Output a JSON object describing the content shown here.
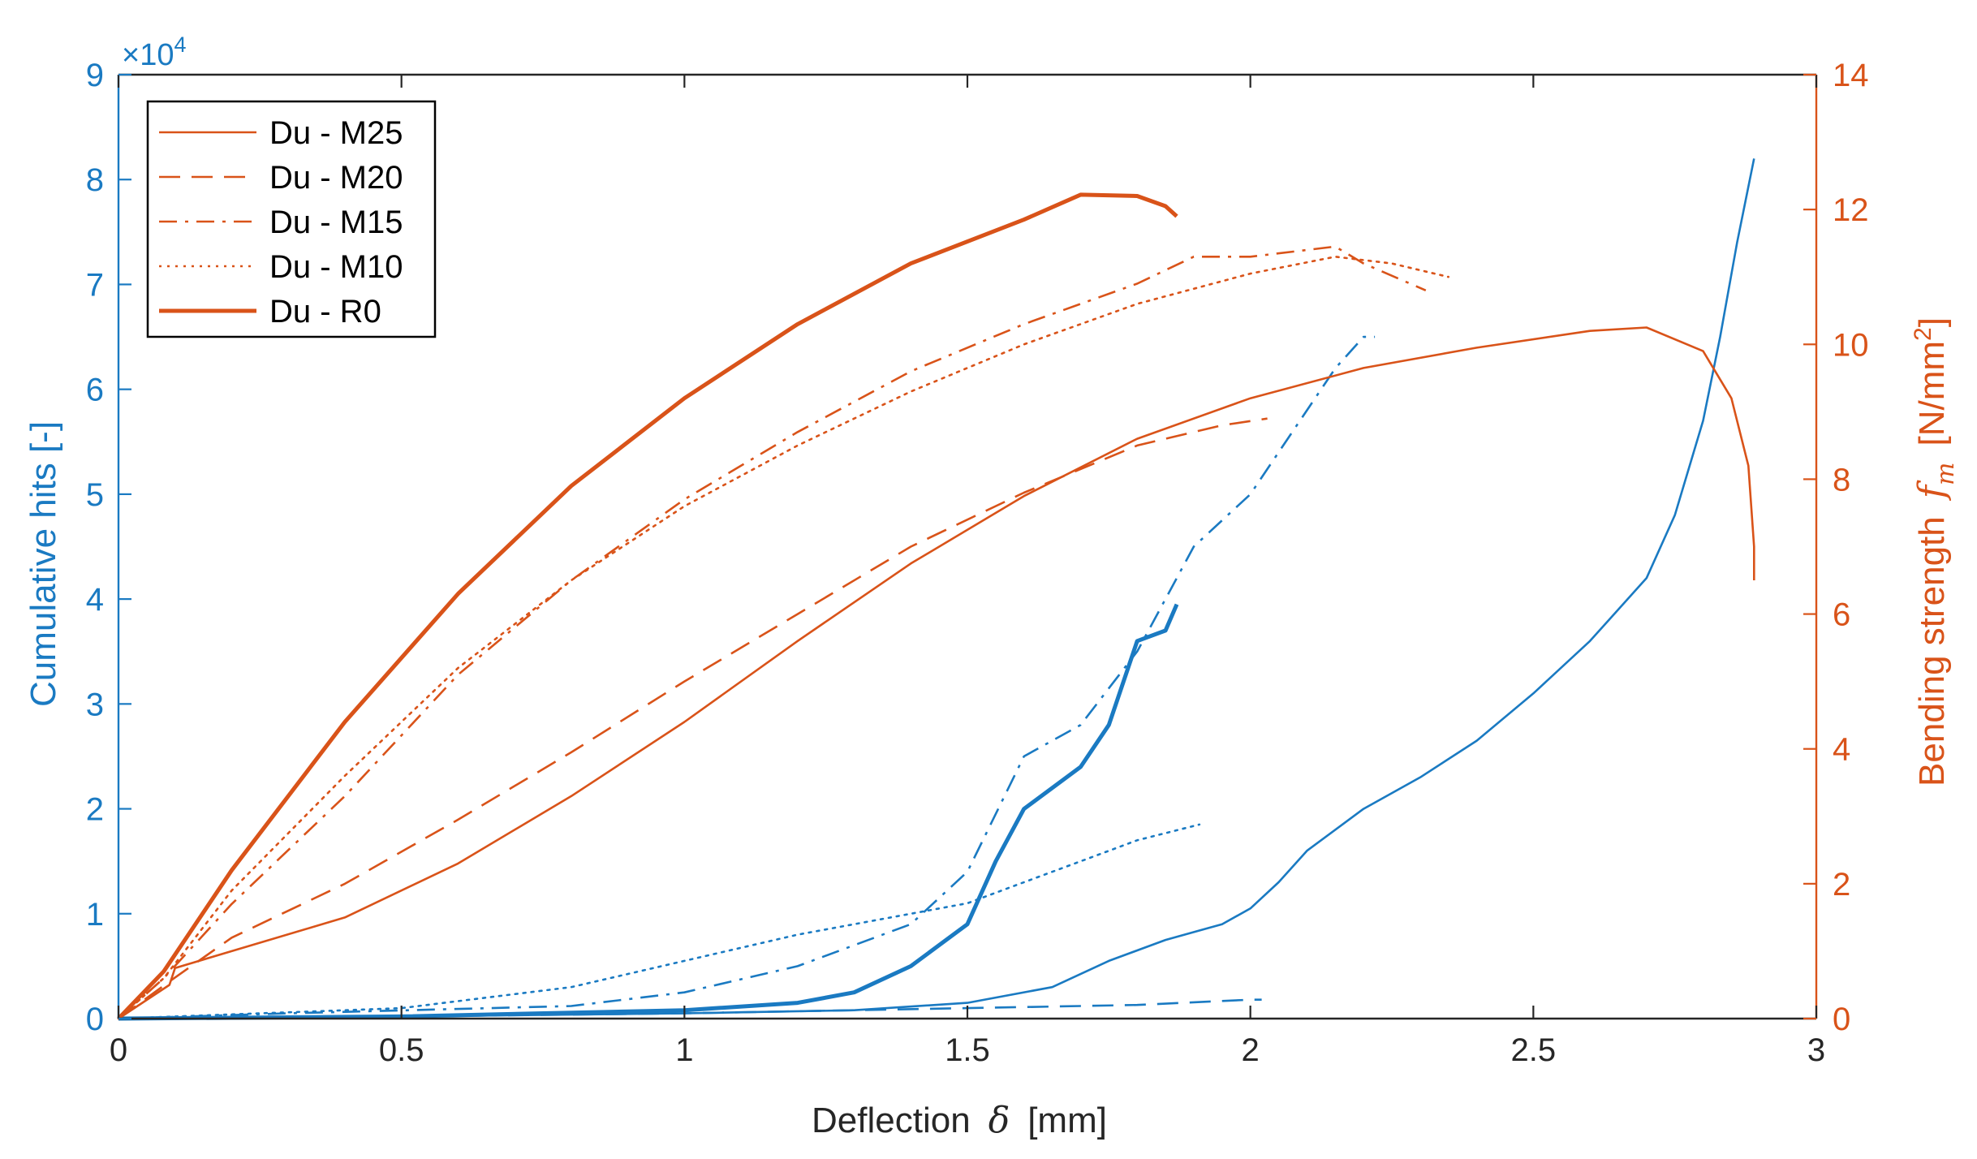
{
  "colors": {
    "left_axis": "#1a7ac2",
    "right_axis": "#d95319",
    "frame": "#262626",
    "legend_border": "#000000"
  },
  "chart_data": {
    "type": "line",
    "title": "",
    "xlabel": "Deflection",
    "xlabel_symbol": "δ",
    "xlabel_unit": "[mm]",
    "xlim": [
      0,
      3
    ],
    "x_ticks": [
      "0",
      "0.5",
      "1",
      "1.5",
      "2",
      "2.5",
      "3"
    ],
    "ylabel_left": "Cumulative hits [-]",
    "ylim_left": [
      0,
      9
    ],
    "y_ticks_left": [
      "0",
      "1",
      "2",
      "3",
      "4",
      "5",
      "6",
      "7",
      "8",
      "9"
    ],
    "y_left_multiplier": "×10",
    "y_left_multiplier_exponent": "4",
    "ylabel_right": "Bending strength",
    "ylabel_right_symbol": "f",
    "ylabel_right_subscript": "m",
    "ylabel_right_unit": "[N/mm",
    "ylabel_right_unit_exponent": "2",
    "ylabel_right_unit_close": "]",
    "ylim_right": [
      0,
      14
    ],
    "y_ticks_right": [
      "0",
      "2",
      "4",
      "6",
      "8",
      "10",
      "12",
      "14"
    ],
    "legend_position": "top-left",
    "legend": [
      {
        "label": "Du - M25",
        "dash": "solid",
        "width": "thin"
      },
      {
        "label": "Du - M20",
        "dash": "dashed",
        "width": "thin"
      },
      {
        "label": "Du - M15",
        "dash": "dashdot",
        "width": "thin"
      },
      {
        "label": "Du - M10",
        "dash": "dotted",
        "width": "thin"
      },
      {
        "label": "Du - R0",
        "dash": "solid",
        "width": "thick"
      }
    ],
    "series_strength": [
      {
        "name": "Du - M25",
        "axis": "right",
        "dash": "solid",
        "width": "thin",
        "points": [
          [
            0,
            0
          ],
          [
            0.09,
            0.5
          ],
          [
            0.1,
            0.75
          ],
          [
            0.2,
            1.0
          ],
          [
            0.4,
            1.5
          ],
          [
            0.6,
            2.3
          ],
          [
            0.8,
            3.3
          ],
          [
            1.0,
            4.4
          ],
          [
            1.2,
            5.6
          ],
          [
            1.4,
            6.75
          ],
          [
            1.6,
            7.75
          ],
          [
            1.8,
            8.6
          ],
          [
            2.0,
            9.2
          ],
          [
            2.2,
            9.65
          ],
          [
            2.4,
            9.95
          ],
          [
            2.6,
            10.2
          ],
          [
            2.7,
            10.25
          ],
          [
            2.8,
            9.9
          ],
          [
            2.85,
            9.2
          ],
          [
            2.88,
            8.2
          ],
          [
            2.89,
            7.0
          ],
          [
            2.89,
            6.5
          ]
        ]
      },
      {
        "name": "Du - M20",
        "axis": "right",
        "dash": "dashed",
        "width": "thin",
        "points": [
          [
            0,
            0
          ],
          [
            0.09,
            0.55
          ],
          [
            0.2,
            1.2
          ],
          [
            0.4,
            2.0
          ],
          [
            0.6,
            2.95
          ],
          [
            0.8,
            3.95
          ],
          [
            1.0,
            5.0
          ],
          [
            1.2,
            6.0
          ],
          [
            1.4,
            7.0
          ],
          [
            1.6,
            7.8
          ],
          [
            1.8,
            8.5
          ],
          [
            1.95,
            8.8
          ],
          [
            2.03,
            8.9
          ]
        ]
      },
      {
        "name": "Du - M15",
        "axis": "right",
        "dash": "dashdot",
        "width": "thin",
        "points": [
          [
            0,
            0
          ],
          [
            0.08,
            0.6
          ],
          [
            0.2,
            1.7
          ],
          [
            0.4,
            3.3
          ],
          [
            0.6,
            5.1
          ],
          [
            0.8,
            6.5
          ],
          [
            1.0,
            7.7
          ],
          [
            1.2,
            8.7
          ],
          [
            1.4,
            9.6
          ],
          [
            1.6,
            10.3
          ],
          [
            1.8,
            10.9
          ],
          [
            1.9,
            11.3
          ],
          [
            2.0,
            11.3
          ],
          [
            2.15,
            11.45
          ],
          [
            2.2,
            11.2
          ],
          [
            2.31,
            10.8
          ]
        ]
      },
      {
        "name": "Du - M10",
        "axis": "right",
        "dash": "dotted",
        "width": "thin",
        "points": [
          [
            0,
            0
          ],
          [
            0.08,
            0.6
          ],
          [
            0.2,
            1.9
          ],
          [
            0.4,
            3.6
          ],
          [
            0.6,
            5.2
          ],
          [
            0.8,
            6.5
          ],
          [
            1.0,
            7.6
          ],
          [
            1.2,
            8.5
          ],
          [
            1.4,
            9.3
          ],
          [
            1.6,
            10.0
          ],
          [
            1.8,
            10.6
          ],
          [
            2.0,
            11.05
          ],
          [
            2.15,
            11.3
          ],
          [
            2.25,
            11.2
          ],
          [
            2.35,
            11.0
          ]
        ]
      },
      {
        "name": "Du - R0",
        "axis": "right",
        "dash": "solid",
        "width": "thick",
        "points": [
          [
            0,
            0
          ],
          [
            0.08,
            0.7
          ],
          [
            0.2,
            2.2
          ],
          [
            0.4,
            4.4
          ],
          [
            0.6,
            6.3
          ],
          [
            0.8,
            7.9
          ],
          [
            1.0,
            9.2
          ],
          [
            1.2,
            10.3
          ],
          [
            1.4,
            11.2
          ],
          [
            1.6,
            11.85
          ],
          [
            1.7,
            12.22
          ],
          [
            1.8,
            12.2
          ],
          [
            1.85,
            12.05
          ],
          [
            1.87,
            11.9
          ]
        ]
      }
    ],
    "series_hits": [
      {
        "name": "Du - M25",
        "axis": "left",
        "dash": "solid",
        "width": "thin",
        "points": [
          [
            0,
            0
          ],
          [
            0.5,
            0.02
          ],
          [
            1.0,
            0.05
          ],
          [
            1.3,
            0.08
          ],
          [
            1.5,
            0.15
          ],
          [
            1.65,
            0.3
          ],
          [
            1.75,
            0.55
          ],
          [
            1.85,
            0.75
          ],
          [
            1.95,
            0.9
          ],
          [
            2.0,
            1.05
          ],
          [
            2.05,
            1.3
          ],
          [
            2.1,
            1.6
          ],
          [
            2.2,
            2.0
          ],
          [
            2.3,
            2.3
          ],
          [
            2.4,
            2.65
          ],
          [
            2.5,
            3.1
          ],
          [
            2.6,
            3.6
          ],
          [
            2.7,
            4.2
          ],
          [
            2.75,
            4.8
          ],
          [
            2.8,
            5.7
          ],
          [
            2.83,
            6.5
          ],
          [
            2.86,
            7.4
          ],
          [
            2.89,
            8.2
          ]
        ]
      },
      {
        "name": "Du - M20",
        "axis": "left",
        "dash": "dashed",
        "width": "thin",
        "points": [
          [
            0,
            0
          ],
          [
            0.5,
            0.02
          ],
          [
            1.0,
            0.05
          ],
          [
            1.5,
            0.1
          ],
          [
            1.8,
            0.13
          ],
          [
            2.0,
            0.18
          ],
          [
            2.02,
            0.18
          ]
        ]
      },
      {
        "name": "Du - M15",
        "axis": "left",
        "dash": "dashdot",
        "width": "thin",
        "points": [
          [
            0,
            0
          ],
          [
            0.3,
            0.05
          ],
          [
            0.8,
            0.12
          ],
          [
            1.0,
            0.25
          ],
          [
            1.2,
            0.5
          ],
          [
            1.4,
            0.9
          ],
          [
            1.5,
            1.4
          ],
          [
            1.6,
            2.5
          ],
          [
            1.7,
            2.8
          ],
          [
            1.8,
            3.5
          ],
          [
            1.9,
            4.5
          ],
          [
            2.0,
            5.0
          ],
          [
            2.05,
            5.4
          ],
          [
            2.1,
            5.8
          ],
          [
            2.15,
            6.2
          ],
          [
            2.2,
            6.5
          ],
          [
            2.22,
            6.5
          ]
        ]
      },
      {
        "name": "Du - M10",
        "axis": "left",
        "dash": "dotted",
        "width": "thin",
        "points": [
          [
            0,
            0
          ],
          [
            0.5,
            0.1
          ],
          [
            0.8,
            0.3
          ],
          [
            1.0,
            0.55
          ],
          [
            1.2,
            0.8
          ],
          [
            1.4,
            1.0
          ],
          [
            1.5,
            1.1
          ],
          [
            1.6,
            1.3
          ],
          [
            1.7,
            1.5
          ],
          [
            1.8,
            1.7
          ],
          [
            1.91,
            1.85
          ]
        ]
      },
      {
        "name": "Du - R0",
        "axis": "left",
        "dash": "solid",
        "width": "thick",
        "points": [
          [
            0,
            0
          ],
          [
            0.5,
            0.02
          ],
          [
            1.0,
            0.08
          ],
          [
            1.2,
            0.15
          ],
          [
            1.3,
            0.25
          ],
          [
            1.4,
            0.5
          ],
          [
            1.5,
            0.9
          ],
          [
            1.55,
            1.5
          ],
          [
            1.6,
            2.0
          ],
          [
            1.7,
            2.4
          ],
          [
            1.75,
            2.8
          ],
          [
            1.8,
            3.6
          ],
          [
            1.85,
            3.7
          ],
          [
            1.87,
            3.95
          ]
        ]
      }
    ]
  }
}
